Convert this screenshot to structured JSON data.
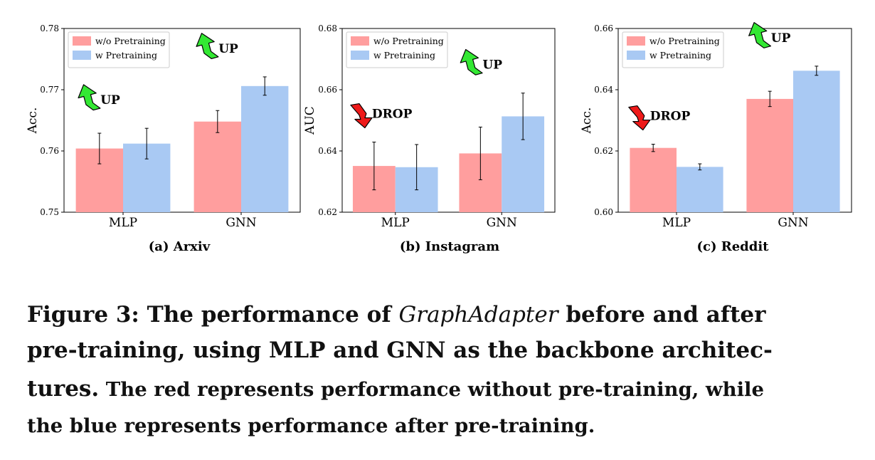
{
  "colors": {
    "red": "#ff9e9e",
    "blue": "#a9c9f3",
    "up_arrow": "#33e833",
    "drop_arrow": "#ee1a1a"
  },
  "chart_data": [
    {
      "type": "bar",
      "title": "(a) Arxiv",
      "ylabel": "Acc.",
      "xlabel": "",
      "ylim": [
        0.75,
        0.78
      ],
      "yticks": [
        "0.75",
        "0.76",
        "0.77",
        "0.78"
      ],
      "categories": [
        "MLP",
        "GNN"
      ],
      "legend": [
        "w/o Pretraining",
        "w Pretraining"
      ],
      "legend_position": "top-left",
      "series": [
        {
          "name": "w/o Pretraining",
          "values": [
            0.7604,
            0.7648
          ],
          "errors": [
            0.0025,
            0.0018
          ]
        },
        {
          "name": "w Pretraining",
          "values": [
            0.7612,
            0.7706
          ],
          "errors": [
            0.0025,
            0.0015
          ]
        }
      ],
      "annotations": [
        {
          "text": "UP",
          "arrow": "up",
          "category": "MLP"
        },
        {
          "text": "UP",
          "arrow": "up",
          "category": "GNN"
        }
      ]
    },
    {
      "type": "bar",
      "title": "(b) Instagram",
      "ylabel": "AUC",
      "xlabel": "",
      "ylim": [
        0.62,
        0.68
      ],
      "yticks": [
        "0.62",
        "0.64",
        "0.66",
        "0.68"
      ],
      "categories": [
        "MLP",
        "GNN"
      ],
      "legend": [
        "w/o Pretraining",
        "w Pretraining"
      ],
      "legend_position": "top-left",
      "series": [
        {
          "name": "w/o Pretraining",
          "values": [
            0.6351,
            0.6392
          ],
          "errors": [
            0.0078,
            0.0086
          ]
        },
        {
          "name": "w Pretraining",
          "values": [
            0.6347,
            0.6513
          ],
          "errors": [
            0.0074,
            0.0076
          ]
        }
      ],
      "annotations": [
        {
          "text": "DROP",
          "arrow": "down",
          "category": "MLP"
        },
        {
          "text": "UP",
          "arrow": "up",
          "category": "GNN"
        }
      ]
    },
    {
      "type": "bar",
      "title": "(c) Reddit",
      "ylabel": "Acc.",
      "xlabel": "",
      "ylim": [
        0.6,
        0.66
      ],
      "yticks": [
        "0.60",
        "0.62",
        "0.64",
        "0.66"
      ],
      "categories": [
        "MLP",
        "GNN"
      ],
      "legend": [
        "w/o Pretraining",
        "w Pretraining"
      ],
      "legend_position": "top-left",
      "series": [
        {
          "name": "w/o Pretraining",
          "values": [
            0.621,
            0.637
          ],
          "errors": [
            0.0012,
            0.0025
          ]
        },
        {
          "name": "w Pretraining",
          "values": [
            0.6148,
            0.6462
          ],
          "errors": [
            0.001,
            0.0015
          ]
        }
      ],
      "annotations": [
        {
          "text": "DROP",
          "arrow": "down",
          "category": "MLP"
        },
        {
          "text": "UP",
          "arrow": "up",
          "category": "GNN"
        }
      ]
    }
  ],
  "caption": {
    "label": "Figure 3: The performance of ",
    "method": "GraphAdapter",
    "line1_rest": " before and after",
    "line2": "pre-training, using MLP and GNN as the backbone architec-",
    "line3_bold": "tures.",
    "line3_rest": " The red represents performance without pre-training, while",
    "line4": "the blue represents performance after pre-training."
  }
}
